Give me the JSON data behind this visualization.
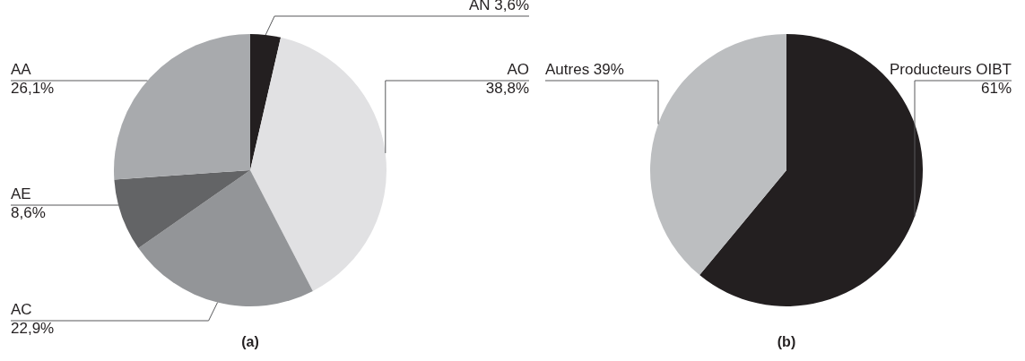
{
  "chart_data": [
    {
      "type": "pie",
      "title": "(a)",
      "categories": [
        "AN",
        "AO",
        "AC",
        "AE",
        "AA"
      ],
      "values": [
        3.6,
        38.8,
        22.9,
        8.6,
        26.1
      ],
      "value_labels": [
        "3,6%",
        "38,8%",
        "22,9%",
        "8,6%",
        "26,1%"
      ],
      "colors": [
        "#231f20",
        "#e1e1e3",
        "#939598",
        "#636466",
        "#a8aaad"
      ]
    },
    {
      "type": "pie",
      "title": "(b)",
      "categories": [
        "Producteurs OIBT",
        "Autres"
      ],
      "values": [
        61,
        39
      ],
      "value_labels": [
        "61%",
        "39%"
      ],
      "colors": [
        "#231f20",
        "#bcbec0"
      ]
    }
  ]
}
